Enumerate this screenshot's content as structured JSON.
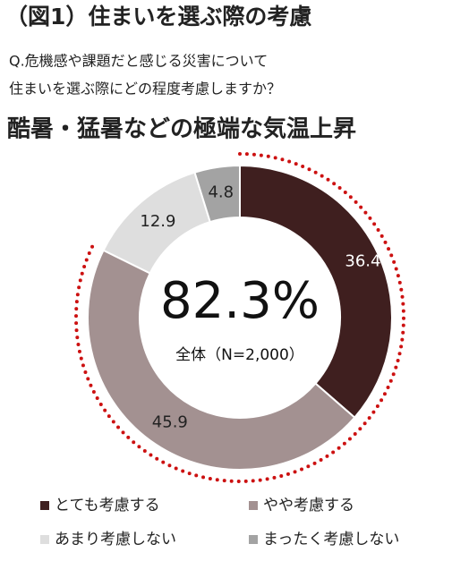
{
  "chart_data": {
    "type": "donut",
    "title": "（図1）住まいを選ぶ際の考慮",
    "subtitle": [
      "Q.危機感や課題だと感じる災害について",
      "住まいを選ぶ際にどの程度考慮しますか？"
    ],
    "chart_title": "酷暑・猛暑などの極端な気温上昇",
    "center_label": "82.3%",
    "center_sublabel": "全体（N=2,000）",
    "categories": [
      "とても考慮する",
      "やや考慮する",
      "あまり考慮しない",
      "まったく考慮しない"
    ],
    "values": [
      36.4,
      45.9,
      12.9,
      4.8
    ],
    "colors": [
      "#3f1f1f",
      "#a39191",
      "#dedede",
      "#a3a3a3"
    ],
    "highlight_color": "#cc1111"
  }
}
